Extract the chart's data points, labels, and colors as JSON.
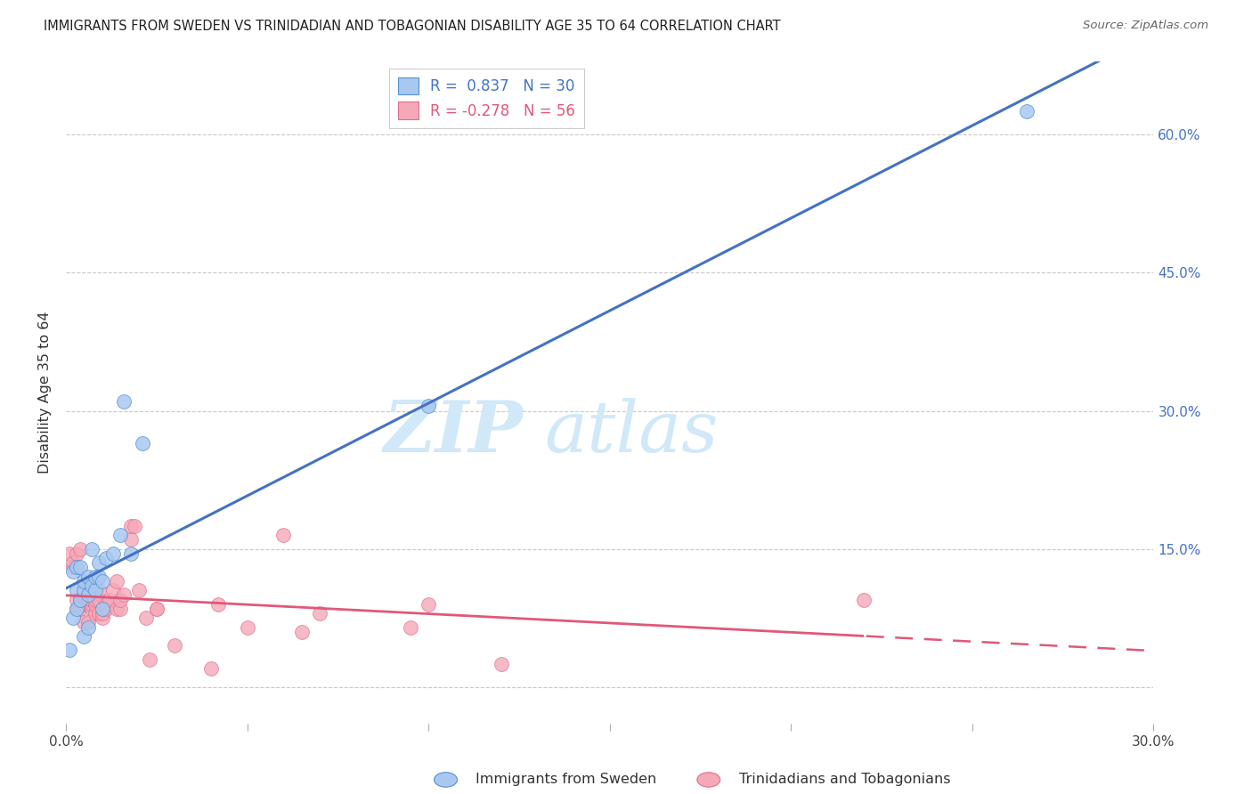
{
  "title": "IMMIGRANTS FROM SWEDEN VS TRINIDADIAN AND TOBAGONIAN DISABILITY AGE 35 TO 64 CORRELATION CHART",
  "source": "Source: ZipAtlas.com",
  "ylabel": "Disability Age 35 to 64",
  "xmin": 0.0,
  "xmax": 0.3,
  "ymin": -0.04,
  "ymax": 0.68,
  "blue_color": "#a8c8f0",
  "blue_edge_color": "#5590d0",
  "blue_line_color": "#4472c4",
  "pink_color": "#f4a8b8",
  "pink_edge_color": "#e07090",
  "pink_line_color": "#e05878",
  "label_color": "#4472c4",
  "watermark_color": "#d0e8f8",
  "grid_color": "#c8c8c8",
  "legend_blue_label": "R =  0.837   N = 30",
  "legend_pink_label": "R = -0.278   N = 56",
  "footer_blue": "Immigrants from Sweden",
  "footer_pink": "Trinidadians and Tobagonians",
  "blue_x": [
    0.001,
    0.002,
    0.002,
    0.003,
    0.003,
    0.003,
    0.004,
    0.004,
    0.005,
    0.005,
    0.005,
    0.006,
    0.006,
    0.006,
    0.007,
    0.007,
    0.008,
    0.008,
    0.009,
    0.009,
    0.01,
    0.01,
    0.011,
    0.013,
    0.015,
    0.016,
    0.018,
    0.021,
    0.1,
    0.265
  ],
  "blue_y": [
    0.04,
    0.075,
    0.125,
    0.085,
    0.105,
    0.13,
    0.095,
    0.13,
    0.055,
    0.105,
    0.115,
    0.065,
    0.1,
    0.12,
    0.11,
    0.15,
    0.105,
    0.12,
    0.12,
    0.135,
    0.085,
    0.115,
    0.14,
    0.145,
    0.165,
    0.31,
    0.145,
    0.265,
    0.305,
    0.625
  ],
  "pink_x": [
    0.001,
    0.002,
    0.002,
    0.003,
    0.003,
    0.003,
    0.004,
    0.004,
    0.004,
    0.005,
    0.005,
    0.005,
    0.006,
    0.006,
    0.006,
    0.006,
    0.007,
    0.007,
    0.007,
    0.007,
    0.008,
    0.008,
    0.008,
    0.009,
    0.009,
    0.009,
    0.01,
    0.01,
    0.011,
    0.011,
    0.012,
    0.013,
    0.014,
    0.014,
    0.015,
    0.015,
    0.016,
    0.018,
    0.018,
    0.019,
    0.02,
    0.022,
    0.023,
    0.025,
    0.025,
    0.03,
    0.04,
    0.042,
    0.05,
    0.06,
    0.065,
    0.07,
    0.095,
    0.1,
    0.12,
    0.22
  ],
  "pink_y": [
    0.145,
    0.13,
    0.135,
    0.085,
    0.095,
    0.145,
    0.085,
    0.095,
    0.15,
    0.07,
    0.09,
    0.1,
    0.07,
    0.09,
    0.095,
    0.11,
    0.085,
    0.09,
    0.095,
    0.1,
    0.08,
    0.09,
    0.095,
    0.08,
    0.095,
    0.105,
    0.075,
    0.08,
    0.085,
    0.09,
    0.095,
    0.105,
    0.085,
    0.115,
    0.085,
    0.095,
    0.1,
    0.16,
    0.175,
    0.175,
    0.105,
    0.075,
    0.03,
    0.085,
    0.085,
    0.045,
    0.02,
    0.09,
    0.065,
    0.165,
    0.06,
    0.08,
    0.065,
    0.09,
    0.025,
    0.095
  ]
}
